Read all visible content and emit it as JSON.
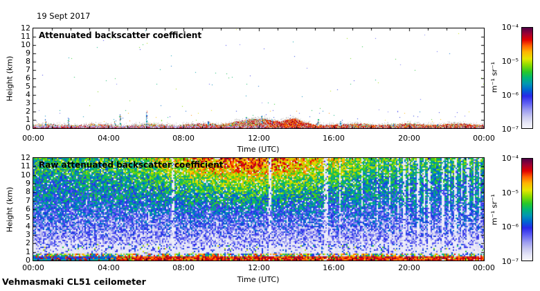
{
  "figure": {
    "date_label": "19 Sept 2017",
    "instrument_label": "Vehmasmaki CL51 ceilometer",
    "background_color": "#ffffff"
  },
  "colormap": {
    "description": "jet-like, dark purple-red = high backscatter, pale lavender-white = low",
    "stops": [
      {
        "p": 0.0,
        "color": "#f6f6fc"
      },
      {
        "p": 0.05,
        "color": "#e8e8f8"
      },
      {
        "p": 0.11,
        "color": "#cacaf0"
      },
      {
        "p": 0.18,
        "color": "#9b9bf0"
      },
      {
        "p": 0.25,
        "color": "#5e5ef2"
      },
      {
        "p": 0.32,
        "color": "#2828e8"
      },
      {
        "p": 0.38,
        "color": "#0064d2"
      },
      {
        "p": 0.44,
        "color": "#0096b4"
      },
      {
        "p": 0.5,
        "color": "#00b478"
      },
      {
        "p": 0.56,
        "color": "#28c828"
      },
      {
        "p": 0.63,
        "color": "#8cdc00"
      },
      {
        "p": 0.69,
        "color": "#e6e600"
      },
      {
        "p": 0.76,
        "color": "#ffb400"
      },
      {
        "p": 0.82,
        "color": "#ff6400"
      },
      {
        "p": 0.88,
        "color": "#e10000"
      },
      {
        "p": 0.94,
        "color": "#9c0032"
      },
      {
        "p": 1.0,
        "color": "#500046"
      }
    ]
  },
  "colorbar": {
    "tick_labels": [
      "10⁻⁴",
      "10⁻⁵",
      "10⁻⁶",
      "10⁻⁷"
    ],
    "unit_label": "m⁻¹ sr⁻¹",
    "range_top": "1e-4",
    "range_bottom": "1e-7"
  },
  "chart_data": [
    {
      "type": "heatmap",
      "title": "Attenuated backscatter coefficient",
      "xlabel": "Time (UTC)",
      "ylabel": "Height (km)",
      "x_range_hours": [
        0,
        24
      ],
      "y_range_km": [
        0,
        12
      ],
      "x_tick_labels": [
        "00:00",
        "04:00",
        "08:00",
        "12:00",
        "16:00",
        "20:00",
        "00:00"
      ],
      "x_minor_tick_every_hours": 1,
      "y_tick_values": [
        0,
        1,
        2,
        3,
        4,
        5,
        6,
        7,
        8,
        9,
        10,
        11,
        12
      ],
      "value_unit": "m⁻¹ sr⁻¹",
      "value_range": [
        "1e-7",
        "1e-4"
      ],
      "content": {
        "summary": "clear (white) above ~1 km; shallow aerosol/boundary layer signal below ~0.6 km all day, strongest red 12:30-16:00",
        "base_layer_top_km": 0.5,
        "lavender_band": {
          "hours": [
            0,
            12.4
          ],
          "top_km": 0.28
        },
        "red_fraction_by_period": [
          {
            "hours": [
              0,
              8
            ],
            "frac": 0.3
          },
          {
            "hours": [
              8,
              12.4
            ],
            "frac": 0.45
          },
          {
            "hours": [
              12.4,
              16.2
            ],
            "frac": 0.72
          },
          {
            "hours": [
              16.2,
              24
            ],
            "frac": 0.55
          }
        ],
        "gray_bumps": [
          {
            "center_hour": 11.5,
            "half_width_hours": 1.3,
            "extra_km": 0.45
          },
          {
            "center_hour": 12.6,
            "half_width_hours": 0.8,
            "extra_km": 0.35
          },
          {
            "center_hour": 13.8,
            "half_width_hours": 0.55,
            "extra_km": 0.6
          }
        ],
        "red_blob": {
          "start_hour": 13.4,
          "end_hour": 14.2,
          "top_km": 0.95
        },
        "spikes": [
          {
            "hour": 0.65,
            "top_km": 1.1
          },
          {
            "hour": 1.85,
            "top_km": 1.45
          },
          {
            "hour": 4.35,
            "top_km": 1.0
          },
          {
            "hour": 4.62,
            "top_km": 1.7
          },
          {
            "hour": 6.02,
            "top_km": 2.1
          },
          {
            "hour": 9.3,
            "top_km": 0.85
          },
          {
            "hour": 11.35,
            "top_km": 1.35
          },
          {
            "hour": 12.15,
            "top_km": 1.6
          },
          {
            "hour": 12.7,
            "top_km": 1.15
          },
          {
            "hour": 15.15,
            "top_km": 1.15
          },
          {
            "hour": 16.35,
            "top_km": 0.9
          },
          {
            "hour": 19.15,
            "top_km": 0.8
          },
          {
            "hour": 21.5,
            "top_km": 0.7
          }
        ]
      }
    },
    {
      "type": "heatmap",
      "title": "Raw attenuated backscatter coefficient",
      "xlabel": "Time (UTC)",
      "ylabel": "Height (km)",
      "x_range_hours": [
        0,
        24
      ],
      "y_range_km": [
        0,
        12
      ],
      "x_tick_labels": [
        "00:00",
        "04:00",
        "08:00",
        "12:00",
        "16:00",
        "20:00",
        "00:00"
      ],
      "x_minor_tick_every_hours": 1,
      "y_tick_values": [
        0,
        1,
        2,
        3,
        4,
        5,
        6,
        7,
        8,
        9,
        10,
        11,
        12
      ],
      "value_unit": "m⁻¹ sr⁻¹",
      "value_range": [
        "1e-7",
        "1e-4"
      ],
      "content": {
        "summary": "dense speckle noise: red surface band <0.5 km, pale band 0.6-2 km, blue mid-levels, green/yellow aloft with orange daytime enhancement, many white data-gap stripes after 15:30",
        "surface_red_band_top_km": 0.45,
        "dark_blue_surface_hours": [
          0,
          4.4
        ],
        "pale_band_km": [
          0.75,
          2.0
        ],
        "warm_peak_hour": 11.5,
        "gap_stripes": [
          {
            "hour": 6.15,
            "width_hours": 0.04,
            "strength": 0.4
          },
          {
            "hour": 7.45,
            "width_hours": 0.09,
            "strength": 0.85
          },
          {
            "hour": 12.62,
            "width_hours": 0.1,
            "strength": 0.9
          },
          {
            "hour": 13.95,
            "width_hours": 0.04,
            "strength": 0.55
          },
          {
            "hour": 15.1,
            "width_hours": 0.04,
            "strength": 0.5
          },
          {
            "hour": 15.62,
            "width_hours": 0.22,
            "strength": 0.95
          },
          {
            "hour": 16.3,
            "width_hours": 0.07,
            "strength": 0.75
          },
          {
            "hour": 17.5,
            "width_hours": 0.05,
            "strength": 0.6
          },
          {
            "hour": 18.3,
            "width_hours": 0.05,
            "strength": 0.55
          },
          {
            "hour": 19.0,
            "width_hours": 0.09,
            "strength": 0.85
          },
          {
            "hour": 19.45,
            "width_hours": 0.06,
            "strength": 0.7
          },
          {
            "hour": 19.75,
            "width_hours": 0.1,
            "strength": 0.9
          },
          {
            "hour": 20.05,
            "width_hours": 0.07,
            "strength": 0.8
          },
          {
            "hour": 20.5,
            "width_hours": 0.14,
            "strength": 0.95
          },
          {
            "hour": 20.8,
            "width_hours": 0.07,
            "strength": 0.8
          },
          {
            "hour": 21.1,
            "width_hours": 0.1,
            "strength": 0.9
          },
          {
            "hour": 21.45,
            "width_hours": 0.06,
            "strength": 0.8
          },
          {
            "hour": 21.8,
            "width_hours": 0.13,
            "strength": 0.95
          },
          {
            "hour": 22.15,
            "width_hours": 0.07,
            "strength": 0.85
          },
          {
            "hour": 22.5,
            "width_hours": 0.11,
            "strength": 0.9
          },
          {
            "hour": 22.85,
            "width_hours": 0.06,
            "strength": 0.8
          },
          {
            "hour": 23.15,
            "width_hours": 0.1,
            "strength": 0.9
          },
          {
            "hour": 23.5,
            "width_hours": 0.07,
            "strength": 0.85
          },
          {
            "hour": 23.8,
            "width_hours": 0.1,
            "strength": 0.9
          }
        ]
      }
    }
  ]
}
